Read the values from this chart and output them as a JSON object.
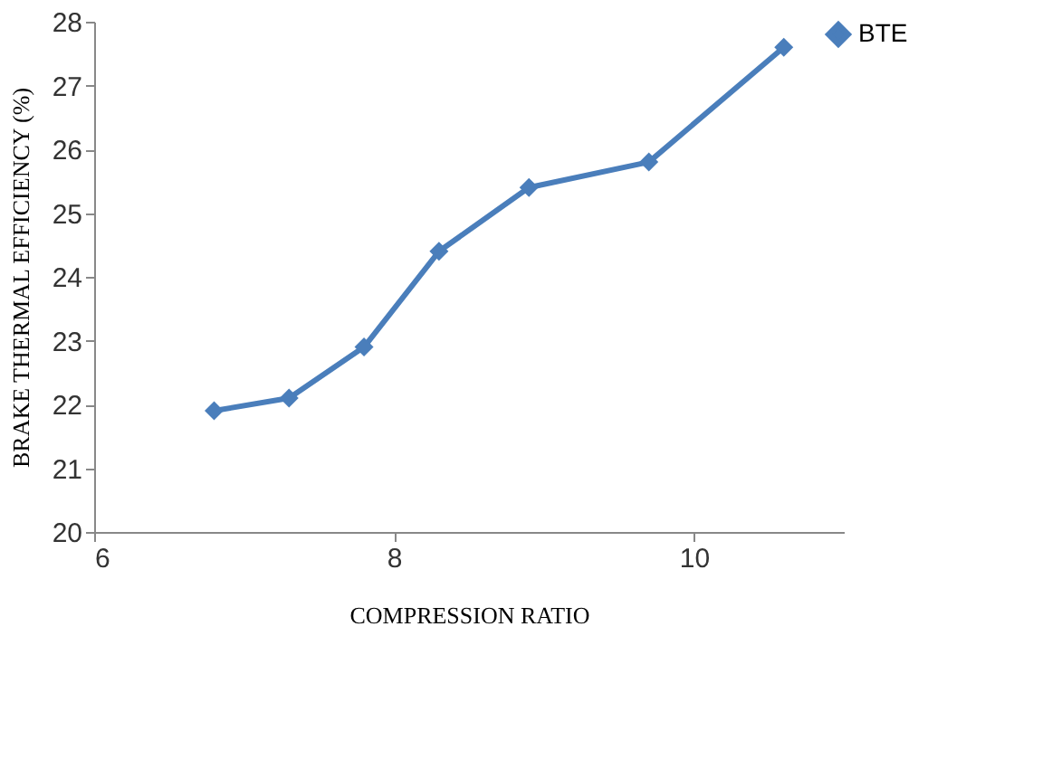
{
  "chart_data": {
    "type": "line",
    "xlabel": "COMPRESSION RATIO",
    "ylabel": "BRAKE THERMAL EFFICIENCY (%)",
    "x": [
      6.8,
      7.3,
      7.8,
      8.3,
      8.9,
      9.7,
      10.6
    ],
    "series": [
      {
        "name": "BTE",
        "color": "#4a7ebb",
        "values": [
          21.9,
          22.1,
          22.9,
          24.4,
          25.4,
          25.8,
          27.6
        ]
      }
    ],
    "xlim": [
      6,
      11
    ],
    "xticks": [
      6,
      8,
      10
    ],
    "ylim": [
      20,
      28
    ],
    "yticks": [
      20,
      21,
      22,
      23,
      24,
      25,
      26,
      27,
      28
    ],
    "grid": false,
    "legend": "right",
    "marker": "diamond",
    "line_style": "solid"
  }
}
